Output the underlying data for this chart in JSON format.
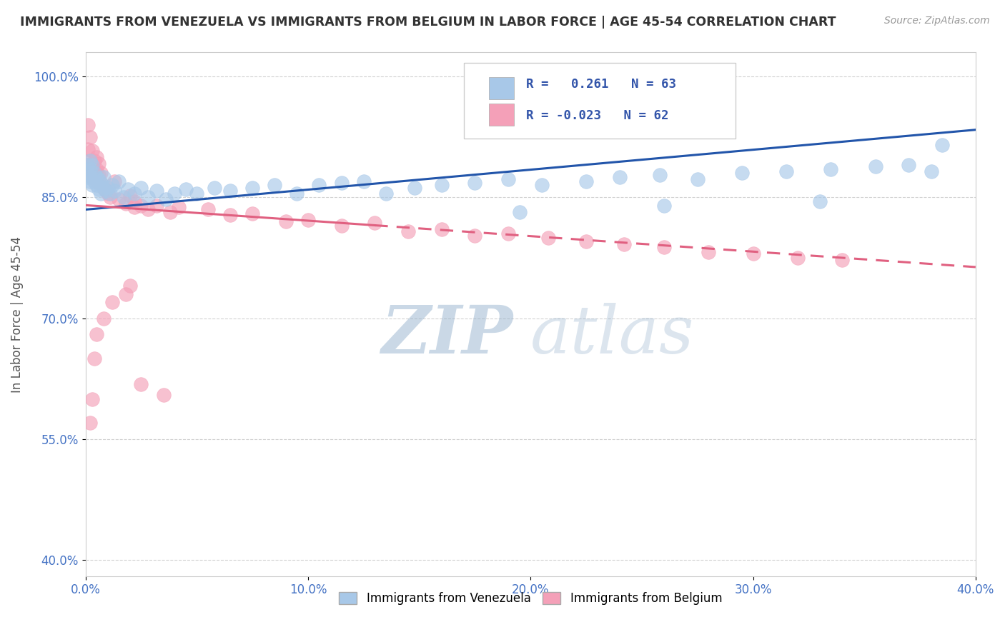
{
  "title": "IMMIGRANTS FROM VENEZUELA VS IMMIGRANTS FROM BELGIUM IN LABOR FORCE | AGE 45-54 CORRELATION CHART",
  "source": "Source: ZipAtlas.com",
  "ylabel": "In Labor Force | Age 45-54",
  "xlim": [
    0.0,
    0.4
  ],
  "ylim": [
    0.38,
    1.03
  ],
  "xticks": [
    0.0,
    0.1,
    0.2,
    0.3,
    0.4
  ],
  "xticklabels": [
    "0.0%",
    "10.0%",
    "20.0%",
    "30.0%",
    "40.0%"
  ],
  "yticks": [
    0.4,
    0.55,
    0.7,
    0.85,
    1.0
  ],
  "yticklabels": [
    "40.0%",
    "55.0%",
    "70.0%",
    "85.0%",
    "100.0%"
  ],
  "venezuela_color": "#A8C8E8",
  "belgium_color": "#F4A0B8",
  "venezuela_line_color": "#2255AA",
  "belgium_line_color": "#E06080",
  "venezuela_R": 0.261,
  "venezuela_N": 63,
  "belgium_R": -0.023,
  "belgium_N": 62,
  "legend_label_venezuela": "Immigrants from Venezuela",
  "legend_label_belgium": "Immigrants from Belgium",
  "watermark_zip": "ZIP",
  "watermark_atlas": "atlas",
  "background_color": "#ffffff",
  "venezuela_x": [
    0.001,
    0.001,
    0.001,
    0.002,
    0.002,
    0.002,
    0.003,
    0.003,
    0.003,
    0.004,
    0.004,
    0.005,
    0.005,
    0.006,
    0.006,
    0.007,
    0.007,
    0.008,
    0.008,
    0.009,
    0.01,
    0.011,
    0.012,
    0.013,
    0.015,
    0.017,
    0.019,
    0.022,
    0.025,
    0.028,
    0.032,
    0.036,
    0.04,
    0.045,
    0.05,
    0.058,
    0.065,
    0.075,
    0.085,
    0.095,
    0.105,
    0.115,
    0.125,
    0.135,
    0.148,
    0.16,
    0.175,
    0.19,
    0.205,
    0.225,
    0.24,
    0.258,
    0.275,
    0.295,
    0.315,
    0.335,
    0.355,
    0.37,
    0.38,
    0.385,
    0.33,
    0.26,
    0.195
  ],
  "venezuela_y": [
    0.875,
    0.88,
    0.89,
    0.87,
    0.885,
    0.895,
    0.865,
    0.875,
    0.89,
    0.87,
    0.88,
    0.865,
    0.875,
    0.86,
    0.872,
    0.855,
    0.868,
    0.862,
    0.875,
    0.858,
    0.862,
    0.855,
    0.865,
    0.858,
    0.87,
    0.85,
    0.86,
    0.855,
    0.862,
    0.85,
    0.858,
    0.848,
    0.855,
    0.86,
    0.855,
    0.862,
    0.858,
    0.862,
    0.865,
    0.855,
    0.865,
    0.868,
    0.87,
    0.855,
    0.862,
    0.865,
    0.868,
    0.872,
    0.865,
    0.87,
    0.875,
    0.878,
    0.872,
    0.88,
    0.882,
    0.885,
    0.888,
    0.89,
    0.882,
    0.915,
    0.845,
    0.84,
    0.832
  ],
  "belgium_x": [
    0.001,
    0.001,
    0.001,
    0.002,
    0.002,
    0.002,
    0.003,
    0.003,
    0.003,
    0.004,
    0.004,
    0.005,
    0.005,
    0.005,
    0.006,
    0.006,
    0.007,
    0.007,
    0.008,
    0.009,
    0.01,
    0.011,
    0.013,
    0.015,
    0.018,
    0.02,
    0.022,
    0.022,
    0.025,
    0.028,
    0.032,
    0.038,
    0.042,
    0.055,
    0.065,
    0.075,
    0.09,
    0.1,
    0.115,
    0.13,
    0.145,
    0.16,
    0.175,
    0.19,
    0.208,
    0.225,
    0.242,
    0.26,
    0.28,
    0.3,
    0.32,
    0.34,
    0.02,
    0.018,
    0.012,
    0.008,
    0.005,
    0.004,
    0.003,
    0.002,
    0.025,
    0.035
  ],
  "belgium_y": [
    0.89,
    0.91,
    0.94,
    0.88,
    0.895,
    0.925,
    0.875,
    0.888,
    0.908,
    0.882,
    0.895,
    0.87,
    0.885,
    0.9,
    0.878,
    0.892,
    0.868,
    0.88,
    0.862,
    0.858,
    0.855,
    0.85,
    0.87,
    0.848,
    0.842,
    0.852,
    0.845,
    0.838,
    0.84,
    0.835,
    0.84,
    0.832,
    0.838,
    0.835,
    0.828,
    0.83,
    0.82,
    0.822,
    0.815,
    0.818,
    0.808,
    0.81,
    0.802,
    0.805,
    0.8,
    0.795,
    0.792,
    0.788,
    0.782,
    0.78,
    0.775,
    0.772,
    0.74,
    0.73,
    0.72,
    0.7,
    0.68,
    0.65,
    0.6,
    0.57,
    0.618,
    0.605
  ],
  "ven_trend_x": [
    0.001,
    0.385
  ],
  "ven_trend_y": [
    0.835,
    0.93
  ],
  "bel_trend_x": [
    0.001,
    0.34
  ],
  "bel_trend_y": [
    0.84,
    0.775
  ]
}
